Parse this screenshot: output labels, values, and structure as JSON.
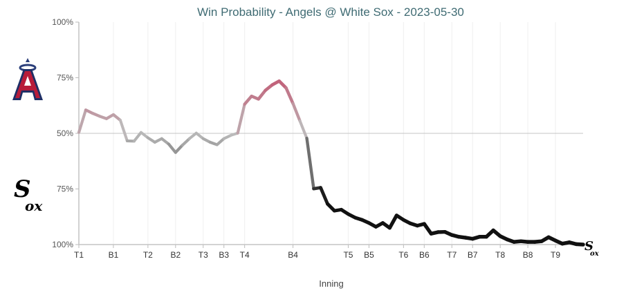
{
  "chart_data": {
    "type": "line",
    "title": "Win Probability - Angels @ White Sox - 2023-05-30",
    "xlabel": "Inning",
    "ylabel": "",
    "y_tick_labels": [
      "100%",
      "75%",
      "50%",
      "75%",
      "100%"
    ],
    "y_meaning": "Angels win probability (%) — top = Angels 100%, bottom = White Sox 100%",
    "ylim": [
      0,
      100
    ],
    "x_tick_labels": [
      {
        "label": "T1",
        "index": 0
      },
      {
        "label": "B1",
        "index": 5
      },
      {
        "label": "T2",
        "index": 10
      },
      {
        "label": "B2",
        "index": 14
      },
      {
        "label": "T3",
        "index": 18
      },
      {
        "label": "B3",
        "index": 21
      },
      {
        "label": "T4",
        "index": 24
      },
      {
        "label": "B4",
        "index": 31
      },
      {
        "label": "T5",
        "index": 39
      },
      {
        "label": "B5",
        "index": 42
      },
      {
        "label": "T6",
        "index": 47
      },
      {
        "label": "B6",
        "index": 50
      },
      {
        "label": "T7",
        "index": 54
      },
      {
        "label": "B7",
        "index": 57
      },
      {
        "label": "T8",
        "index": 61
      },
      {
        "label": "B8",
        "index": 65
      },
      {
        "label": "T9",
        "index": 69
      }
    ],
    "values": [
      50.4,
      60.5,
      59.0,
      57.7,
      56.6,
      58.4,
      55.9,
      46.6,
      46.5,
      50.4,
      48.0,
      46.0,
      47.6,
      45.2,
      41.4,
      44.7,
      47.6,
      50.1,
      47.6,
      46.0,
      44.9,
      47.6,
      49.1,
      50.1,
      63.1,
      66.7,
      65.4,
      69.3,
      71.8,
      73.5,
      70.4,
      63.4,
      55.6,
      47.8,
      25.1,
      25.6,
      18.3,
      15.2,
      15.7,
      13.7,
      12.1,
      11.1,
      9.7,
      8.0,
      9.7,
      7.5,
      13.1,
      11.1,
      9.5,
      8.5,
      9.3,
      4.9,
      5.6,
      5.7,
      4.3,
      3.5,
      3.1,
      2.6,
      3.5,
      3.5,
      6.4,
      3.8,
      2.3,
      1.2,
      1.5,
      1.2,
      1.2,
      1.5,
      3.3,
      1.8,
      0.4,
      1.0,
      0.2,
      0.0
    ],
    "grid": "vertical lines at inning ticks; horizontal line at 50%",
    "colors": {
      "angels": "#c25a74",
      "neutral": "#bdbdbd",
      "white_sox": "#111111"
    },
    "logos": {
      "top": "Angels",
      "bottom": "White Sox"
    }
  }
}
